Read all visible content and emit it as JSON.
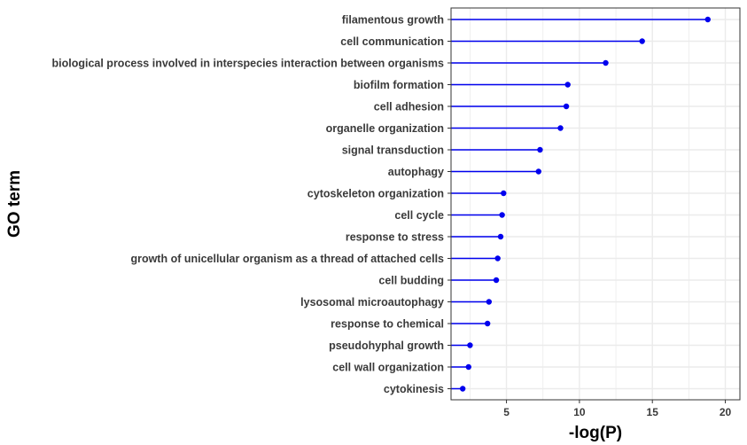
{
  "chart_data": {
    "type": "lollipop",
    "xlabel": "-log(P)",
    "ylabel": "GO term",
    "xlim": [
      1.2,
      21
    ],
    "xticks": [
      5,
      10,
      15,
      20
    ],
    "grid": true,
    "legend": "none",
    "colors": {
      "stem": "#0000EE",
      "point": "#0000EE",
      "grid": "#EBEBEB",
      "panel_border": "#333333"
    },
    "categories": [
      "filamentous growth",
      "cell communication",
      "biological process involved in interspecies interaction between organisms",
      "biofilm formation",
      "cell adhesion",
      "organelle organization",
      "signal transduction",
      "autophagy",
      "cytoskeleton organization",
      "cell cycle",
      "response to stress",
      "growth of unicellular organism as a thread of attached cells",
      "cell budding",
      "lysosomal microautophagy",
      "response to chemical",
      "pseudohyphal growth",
      "cell wall organization",
      "cytokinesis"
    ],
    "values": [
      18.8,
      14.3,
      11.8,
      9.2,
      9.1,
      8.7,
      7.3,
      7.2,
      4.8,
      4.7,
      4.6,
      4.4,
      4.3,
      3.8,
      3.7,
      2.5,
      2.4,
      2.0
    ]
  }
}
